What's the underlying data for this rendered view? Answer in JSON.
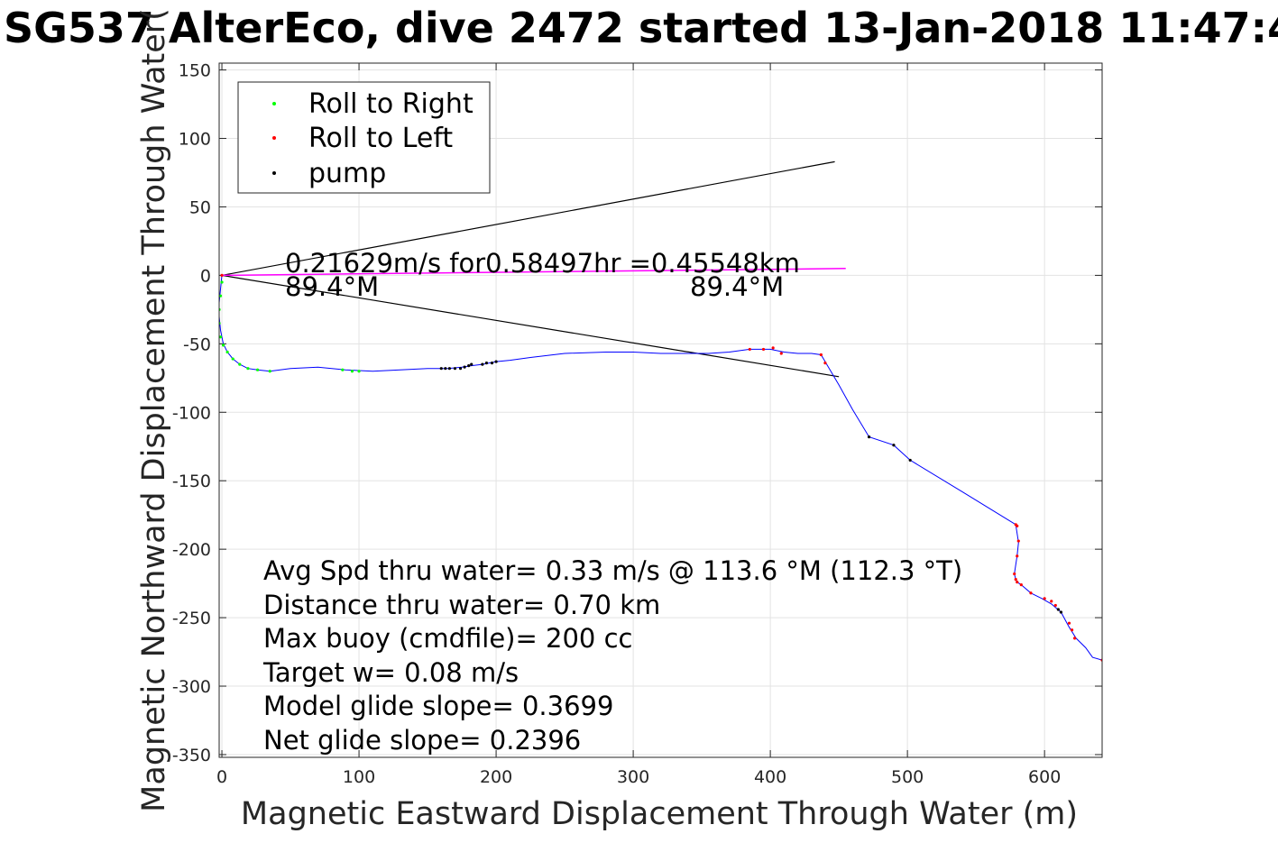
{
  "chart_data": {
    "type": "scatter",
    "title": "SG537 AlterEco, dive 2472 started 13-Jan-2018 11:47:4",
    "xlabel": "Magnetic Eastward Displacement Through Water (m)",
    "ylabel": "Magnetic Northward Displacement Through Water(",
    "xlim": [
      -2,
      642
    ],
    "ylim": [
      -352,
      155
    ],
    "x_ticks": [
      0,
      100,
      200,
      300,
      400,
      500,
      600
    ],
    "y_ticks": [
      150,
      100,
      50,
      0,
      -50,
      -100,
      -150,
      -200,
      -250,
      -300,
      -350
    ],
    "grid": true,
    "legend_position": "top-left",
    "legend": [
      {
        "label": "Roll to Right",
        "color": "#00ff00"
      },
      {
        "label": "Roll to Left",
        "color": "#ff0000"
      },
      {
        "label": "pump",
        "color": "#000000"
      }
    ],
    "track": {
      "name": "",
      "color": "#0000ff",
      "x": [
        0,
        -1,
        -2,
        -2,
        -1,
        1,
        4,
        8,
        13,
        19,
        26,
        35,
        50,
        70,
        90,
        110,
        130,
        150,
        165,
        175,
        182,
        190,
        200,
        210,
        225,
        250,
        280,
        300,
        320,
        340,
        355,
        370,
        385,
        400,
        410,
        420,
        430,
        437,
        440,
        450,
        460,
        472,
        490,
        502,
        540,
        579,
        581,
        580,
        578,
        579,
        580,
        583,
        590,
        598,
        605,
        612,
        618,
        623,
        630,
        635,
        642
      ],
      "y": [
        0,
        -10,
        -20,
        -30,
        -40,
        -50,
        -56,
        -61,
        -65,
        -68,
        -69,
        -70,
        -68,
        -67,
        -69,
        -70,
        -69,
        -68,
        -68,
        -67,
        -66,
        -65,
        -63,
        -62,
        -60,
        -57,
        -56,
        -56,
        -57,
        -57,
        -57,
        -56,
        -54,
        -54,
        -56,
        -57,
        -57,
        -58,
        -63,
        -80,
        -98,
        -118,
        -124,
        -135,
        -158,
        -182,
        -195,
        -205,
        -218,
        -222,
        -224,
        -226,
        -232,
        -236,
        -240,
        -246,
        -257,
        -265,
        -272,
        -279,
        -281
      ]
    },
    "roll_right_points": {
      "x": [
        0,
        -1,
        -2,
        -2,
        -1,
        1,
        4,
        8,
        13,
        19,
        26,
        35,
        88,
        95,
        100
      ],
      "y": [
        -5,
        -15,
        -25,
        -35,
        -45,
        -51,
        -56,
        -61,
        -65,
        -68,
        -69,
        -70,
        -69,
        -70,
        -70
      ]
    },
    "roll_left_points": {
      "x": [
        0,
        385,
        395,
        402,
        408,
        437,
        440,
        579,
        580,
        581,
        580,
        578,
        579,
        580,
        583,
        590,
        600,
        605,
        608,
        618,
        620,
        622,
        642
      ],
      "y": [
        0,
        -54,
        -54,
        -53,
        -57,
        -58,
        -64,
        -182,
        -183,
        -194,
        -205,
        -218,
        -222,
        -224,
        -226,
        -232,
        -236,
        -238,
        -241,
        -254,
        -259,
        -265,
        -281
      ]
    },
    "pump_points": {
      "x": [
        160,
        163,
        166,
        170,
        174,
        177,
        180,
        182,
        190,
        193,
        197,
        200,
        472,
        490,
        502,
        610,
        612
      ],
      "y": [
        -68,
        -68,
        -68,
        -68,
        -68,
        -67,
        -66,
        -65,
        -65,
        -64,
        -64,
        -63,
        -118,
        -124,
        -135,
        -244,
        -246
      ]
    },
    "cone_lines": [
      {
        "color": "#000000",
        "x": [
          0,
          447
        ],
        "y": [
          0,
          83
        ]
      },
      {
        "color": "#000000",
        "x": [
          0,
          450
        ],
        "y": [
          0,
          -74
        ]
      }
    ],
    "center_line": {
      "color": "#ff00ff",
      "x": [
        0,
        455
      ],
      "y": [
        0,
        5
      ]
    },
    "current_text": {
      "line1": "0.21629m/s for0.58497hr =0.45548km",
      "left_heading": "89.4°M",
      "right_heading": "89.4°M"
    },
    "stats": [
      "Avg Spd thru water=  0.33 m/s @ 113.6 °M (112.3 °T)",
      "Distance thru water=  0.70 km",
      "Max buoy (cmdfile)= 200 cc",
      "Target w= 0.08 m/s",
      "Model glide slope= 0.3699",
      "Net glide slope= 0.2396"
    ]
  }
}
